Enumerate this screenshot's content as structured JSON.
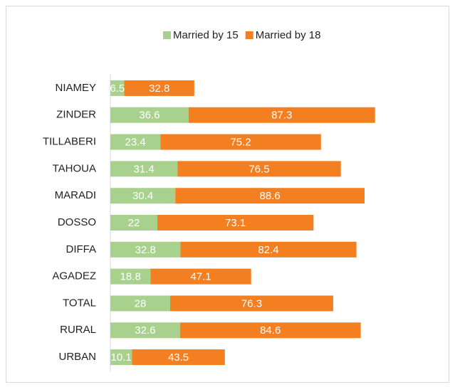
{
  "chart_data": {
    "type": "stacked-bar-horizontal",
    "categories": [
      "NIAMEY",
      "ZINDER",
      "TILLABERI",
      "TAHOUA",
      "MARADI",
      "DOSSO",
      "DIFFA",
      "AGADEZ",
      "TOTAL",
      "RURAL",
      "URBAN"
    ],
    "series": [
      {
        "name": "Married by 15",
        "color": "#a9d18e",
        "values": [
          6.5,
          36.6,
          23.4,
          31.4,
          30.4,
          22,
          32.8,
          18.8,
          28,
          32.6,
          10.1
        ]
      },
      {
        "name": "Married by 18",
        "color": "#f47f20",
        "values": [
          32.8,
          87.3,
          75.2,
          76.5,
          88.6,
          73.1,
          82.4,
          47.1,
          76.3,
          84.6,
          43.5
        ]
      }
    ],
    "xlim": [
      0,
      150
    ],
    "legend": "top"
  }
}
